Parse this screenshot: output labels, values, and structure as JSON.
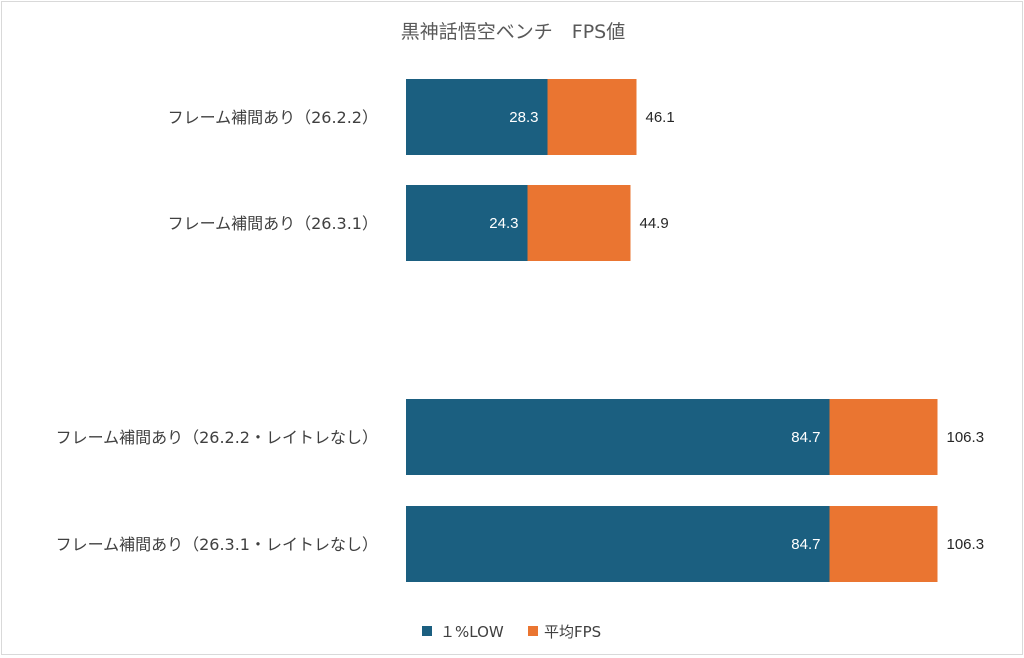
{
  "chart_data": {
    "type": "bar",
    "orientation": "horizontal",
    "stacked": true,
    "title": "黒神話悟空ベンチ　FPS値",
    "categories": [
      "フレーム補間あり（26.2.2）",
      "フレーム補間あり（26.3.1）",
      "",
      "フレーム補間あり（26.2.2・レイトレなし）",
      "フレーム補間あり（26.3.1・レイトレなし）"
    ],
    "series": [
      {
        "name": "１%LOW",
        "color": "#1b5f80",
        "values": [
          28.3,
          24.3,
          null,
          84.7,
          84.7
        ]
      },
      {
        "name": "平均FPS",
        "color": "#ea7531",
        "values": [
          17.8,
          20.6,
          null,
          21.6,
          21.6
        ]
      }
    ],
    "value_labels": {
      "inner": [
        "28.3",
        "24.3",
        "",
        "84.7",
        "84.7"
      ],
      "outer": [
        "46.1",
        "44.9",
        "",
        "106.3",
        "106.3"
      ]
    },
    "xlim": [
      0,
      115
    ],
    "xlabel": "",
    "ylabel": "",
    "grid": false,
    "legend": "bottom"
  }
}
